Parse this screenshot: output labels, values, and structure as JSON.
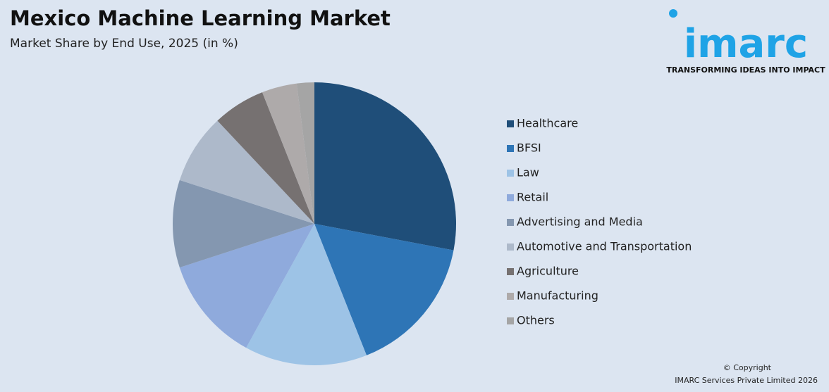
{
  "chart_data": {
    "type": "pie",
    "title": "Mexico Machine Learning Market",
    "subtitle": "Market Share by End Use, 2025 (in %)",
    "categories": [
      "Healthcare",
      "BFSI",
      "Law",
      "Retail",
      "Advertising and Media",
      "Automotive and Transportation",
      "Agriculture",
      "Manufacturing",
      "Others"
    ],
    "values": [
      28,
      16,
      14,
      12,
      10,
      8,
      6,
      4,
      2
    ],
    "colors": [
      "#1f4e79",
      "#2e75b6",
      "#9dc3e6",
      "#8faadc",
      "#8497b0",
      "#adb9ca",
      "#767171",
      "#aeaaaa",
      "#a5a5a5"
    ],
    "legend": "right"
  },
  "logo": {
    "name": "imarc",
    "tagline": "TRANSFORMING IDEAS INTO IMPACT"
  },
  "footer": {
    "copyright": "© Copyright",
    "owner": "IMARC Services Private Limited 2026"
  }
}
